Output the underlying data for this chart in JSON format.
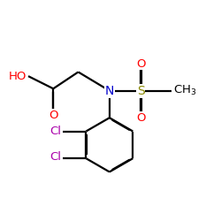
{
  "bg_color": "#FFFFFF",
  "atom_colors": {
    "O": "#FF0000",
    "N": "#0000CC",
    "S": "#888800",
    "Cl": "#AA00AA",
    "C": "#000000"
  },
  "bond_color": "#000000",
  "bond_width": 1.6,
  "dbo": 0.018
}
